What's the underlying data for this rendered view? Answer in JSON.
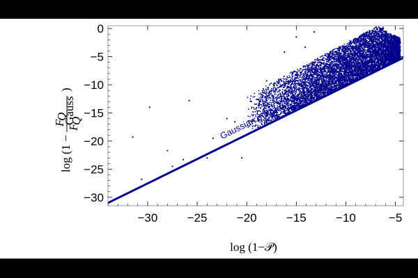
{
  "colors": {
    "background": "#000000",
    "panel": "#ffffff",
    "series": "#00008b",
    "frame": "#999999",
    "text": "#000000"
  },
  "chart_data": {
    "type": "scatter",
    "title": "",
    "xlabel": "log (1−𝒫)",
    "ylabel": "log (1 − F_Q / F_Q^Gauss)",
    "ylabel_parts": {
      "prefix": "log (1 −",
      "num": "F",
      "num_sub": "Q",
      "den": "F",
      "den_sub": "Q",
      "den_sup": "Gauss",
      "suffix": ")"
    },
    "xlim": [
      -34,
      -4.2
    ],
    "ylim": [
      -31.5,
      0.5
    ],
    "x_ticks": [
      -30,
      -25,
      -20,
      -15,
      -10,
      -5
    ],
    "x_tick_labels": [
      "−30",
      "−25",
      "−20",
      "−15",
      "−10",
      "−5"
    ],
    "y_ticks": [
      0,
      -5,
      -10,
      -15,
      -20,
      -25,
      -30
    ],
    "y_tick_labels": [
      "0",
      "−5",
      "−10",
      "−15",
      "−20",
      "−25",
      "−30"
    ],
    "grid": false,
    "legend": "none",
    "bound_line": {
      "label": "Gaussian mixture QFI bound",
      "x": [
        -34,
        -4.2
      ],
      "y": [
        -31,
        -5.2
      ]
    },
    "sparse_points": [
      {
        "x": -31.5,
        "y": -19.3
      },
      {
        "x": -29.8,
        "y": -14.0
      },
      {
        "x": -28.0,
        "y": -21.7
      },
      {
        "x": -25.8,
        "y": -12.8
      },
      {
        "x": -22.0,
        "y": -16.0
      },
      {
        "x": -21.2,
        "y": -16.6
      },
      {
        "x": -20.5,
        "y": -23.0
      },
      {
        "x": -27.5,
        "y": -24.5
      },
      {
        "x": -30.6,
        "y": -26.8
      },
      {
        "x": -26.4,
        "y": -23.3
      },
      {
        "x": -24.0,
        "y": -23.0
      },
      {
        "x": -23.4,
        "y": -19.5
      },
      {
        "x": -19.0,
        "y": -12.6
      },
      {
        "x": -18.0,
        "y": -9.3
      },
      {
        "x": -16.2,
        "y": -4.2
      },
      {
        "x": -15.0,
        "y": -1.5
      },
      {
        "x": -13.2,
        "y": -0.6
      },
      {
        "x": -14.1,
        "y": -3.3
      }
    ],
    "dense_cloud_description": {
      "x_range": [
        -20,
        -4.5
      ],
      "y_upper_edge": "approaches 0 as x increases toward -6",
      "y_lower_edge": "bounded below by the bound line",
      "point_count_estimate": 9000
    }
  }
}
